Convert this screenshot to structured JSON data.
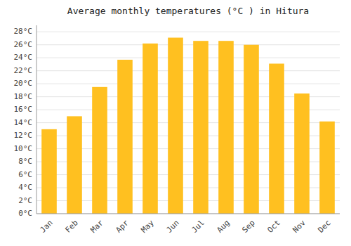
{
  "chart_data": {
    "type": "bar",
    "title": "Average monthly temperatures (°C ) in Hitura",
    "categories": [
      "Jan",
      "Feb",
      "Mar",
      "Apr",
      "May",
      "Jun",
      "Jul",
      "Aug",
      "Sep",
      "Oct",
      "Nov",
      "Dec"
    ],
    "values": [
      13,
      15,
      19.5,
      23.7,
      26.2,
      27.1,
      26.6,
      26.6,
      26.0,
      23.1,
      18.5,
      14.2
    ],
    "color": "#FFC020",
    "ylim": [
      0,
      29
    ],
    "yticks": [
      {
        "value": 0,
        "label": "0°C"
      },
      {
        "value": 2,
        "label": "2°C"
      },
      {
        "value": 4,
        "label": "4°C"
      },
      {
        "value": 6,
        "label": "6°C"
      },
      {
        "value": 8,
        "label": "8°C"
      },
      {
        "value": 10,
        "label": "10°C"
      },
      {
        "value": 12,
        "label": "12°C"
      },
      {
        "value": 14,
        "label": "14°C"
      },
      {
        "value": 16,
        "label": "16°C"
      },
      {
        "value": 18,
        "label": "18°C"
      },
      {
        "value": 20,
        "label": "20°C"
      },
      {
        "value": 22,
        "label": "22°C"
      },
      {
        "value": 24,
        "label": "24°C"
      },
      {
        "value": 26,
        "label": "26°C"
      },
      {
        "value": 28,
        "label": "28°C"
      }
    ],
    "grid": true
  }
}
